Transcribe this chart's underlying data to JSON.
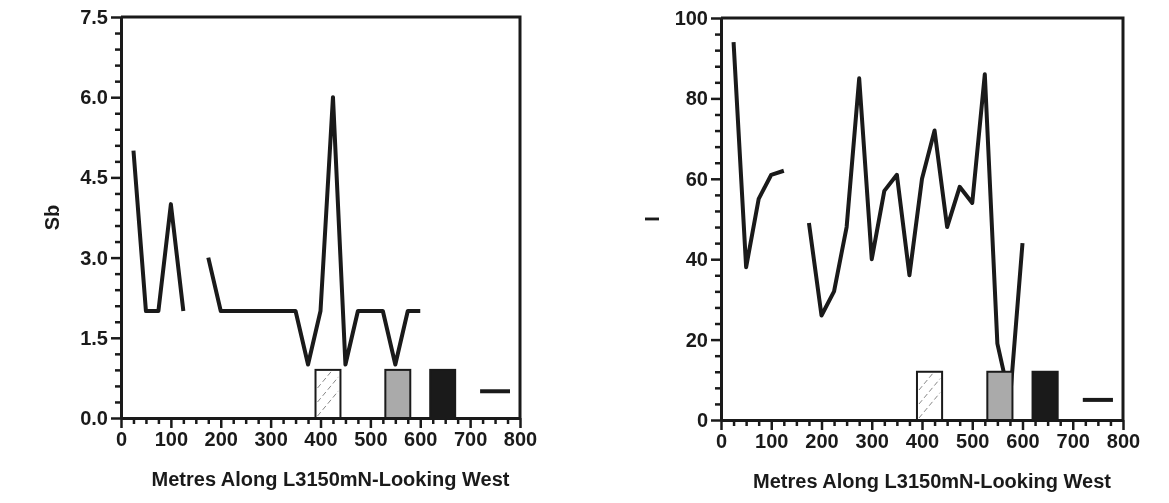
{
  "chart_data": [
    {
      "type": "line",
      "xlabel": "Metres Along L3150mN-Looking West",
      "ylabel": "Sb",
      "grid": false,
      "marker": "none",
      "line_style": "solid",
      "xlim": [
        0,
        800
      ],
      "ylim": [
        0,
        7.5
      ],
      "xticks": [
        0,
        {
          "value": 25,
          "label": null
        },
        {
          "value": 50,
          "label": null
        },
        {
          "value": 75,
          "label": null
        },
        100,
        {
          "value": 125,
          "label": null
        },
        {
          "value": 150,
          "label": null
        },
        {
          "value": 175,
          "label": null
        },
        200,
        {
          "value": 225,
          "label": null
        },
        {
          "value": 250,
          "label": null
        },
        {
          "value": 275,
          "label": null
        },
        300,
        {
          "value": 325,
          "label": null
        },
        {
          "value": 350,
          "label": null
        },
        {
          "value": 375,
          "label": null
        },
        400,
        {
          "value": 425,
          "label": null
        },
        {
          "value": 450,
          "label": null
        },
        {
          "value": 475,
          "label": null
        },
        500,
        {
          "value": 525,
          "label": null
        },
        {
          "value": 550,
          "label": null
        },
        {
          "value": 575,
          "label": null
        },
        600,
        {
          "value": 625,
          "label": null
        },
        {
          "value": 650,
          "label": null
        },
        {
          "value": 675,
          "label": null
        },
        700,
        {
          "value": 725,
          "label": null
        },
        {
          "value": 750,
          "label": null
        },
        {
          "value": 775,
          "label": null
        },
        800
      ],
      "yticks": [
        {
          "value": 0,
          "label": "0.0"
        },
        {
          "value": 0.3,
          "label": null
        },
        {
          "value": 0.6,
          "label": null
        },
        {
          "value": 0.9,
          "label": null
        },
        {
          "value": 1.2,
          "label": null
        },
        {
          "value": 1.5,
          "label": "1.5"
        },
        {
          "value": 1.8,
          "label": null
        },
        {
          "value": 2.1,
          "label": null
        },
        {
          "value": 2.4,
          "label": null
        },
        {
          "value": 2.7,
          "label": null
        },
        {
          "value": 3,
          "label": "3.0"
        },
        {
          "value": 3.3,
          "label": null
        },
        {
          "value": 3.6,
          "label": null
        },
        {
          "value": 3.9,
          "label": null
        },
        {
          "value": 4.2,
          "label": null
        },
        {
          "value": 4.5,
          "label": "4.5"
        },
        {
          "value": 4.8,
          "label": null
        },
        {
          "value": 5.1,
          "label": null
        },
        {
          "value": 5.4,
          "label": null
        },
        {
          "value": 5.7,
          "label": null
        },
        {
          "value": 6,
          "label": "6.0"
        },
        {
          "value": 6.3,
          "label": null
        },
        {
          "value": 6.6,
          "label": null
        },
        {
          "value": 6.9,
          "label": null
        },
        {
          "value": 7.2,
          "label": null
        },
        {
          "value": 7.5,
          "label": "7.5"
        }
      ],
      "series": [
        {
          "color": "#1a1a1a",
          "x": [
            25,
            50,
            75,
            100,
            125,
            150,
            175,
            200,
            225,
            250,
            275,
            300,
            325,
            350,
            375,
            400,
            425,
            450,
            475,
            500,
            525,
            550,
            575,
            600
          ],
          "values": [
            5,
            2,
            2,
            4,
            2,
            null,
            3,
            2,
            2,
            2,
            2,
            2,
            2,
            2,
            1,
            2,
            6,
            1,
            2,
            2,
            2,
            1,
            2,
            2
          ]
        },
        {
          "color": "#1a1a1a",
          "x": [
            720,
            780
          ],
          "values": [
            0.5,
            0.5
          ]
        },
        {
          "type": "bar",
          "x": [
            415,
            555,
            645
          ],
          "values": [
            0.9,
            0.9,
            0.9
          ],
          "colors": [
            "#ffffff",
            "#aaaaaa",
            "#1a1a1a"
          ]
        }
      ]
    },
    {
      "type": "line",
      "xlabel": "Metres Along L3150mN-Looking West",
      "ylabel": "I",
      "grid": false,
      "marker": "none",
      "line_style": "solid",
      "xlim": [
        0,
        800
      ],
      "ylim": [
        0,
        100
      ],
      "xticks": [
        0,
        {
          "value": 25,
          "label": null
        },
        {
          "value": 50,
          "label": null
        },
        {
          "value": 75,
          "label": null
        },
        100,
        {
          "value": 125,
          "label": null
        },
        {
          "value": 150,
          "label": null
        },
        {
          "value": 175,
          "label": null
        },
        200,
        {
          "value": 225,
          "label": null
        },
        {
          "value": 250,
          "label": null
        },
        {
          "value": 275,
          "label": null
        },
        300,
        {
          "value": 325,
          "label": null
        },
        {
          "value": 350,
          "label": null
        },
        {
          "value": 375,
          "label": null
        },
        400,
        {
          "value": 425,
          "label": null
        },
        {
          "value": 450,
          "label": null
        },
        {
          "value": 475,
          "label": null
        },
        500,
        {
          "value": 525,
          "label": null
        },
        {
          "value": 550,
          "label": null
        },
        {
          "value": 575,
          "label": null
        },
        600,
        {
          "value": 625,
          "label": null
        },
        {
          "value": 650,
          "label": null
        },
        {
          "value": 675,
          "label": null
        },
        700,
        {
          "value": 725,
          "label": null
        },
        {
          "value": 750,
          "label": null
        },
        {
          "value": 775,
          "label": null
        },
        800
      ],
      "yticks": [
        0,
        {
          "value": 4,
          "label": null
        },
        {
          "value": 8,
          "label": null
        },
        {
          "value": 12,
          "label": null
        },
        {
          "value": 16,
          "label": null
        },
        20,
        {
          "value": 24,
          "label": null
        },
        {
          "value": 28,
          "label": null
        },
        {
          "value": 32,
          "label": null
        },
        {
          "value": 36,
          "label": null
        },
        40,
        {
          "value": 44,
          "label": null
        },
        {
          "value": 48,
          "label": null
        },
        {
          "value": 52,
          "label": null
        },
        {
          "value": 56,
          "label": null
        },
        60,
        {
          "value": 64,
          "label": null
        },
        {
          "value": 68,
          "label": null
        },
        {
          "value": 72,
          "label": null
        },
        {
          "value": 76,
          "label": null
        },
        80,
        {
          "value": 84,
          "label": null
        },
        {
          "value": 88,
          "label": null
        },
        {
          "value": 92,
          "label": null
        },
        {
          "value": 96,
          "label": null
        },
        100
      ],
      "series": [
        {
          "color": "#1a1a1a",
          "x": [
            25,
            50,
            75,
            100,
            125,
            150,
            175,
            200,
            225,
            250,
            275,
            300,
            325,
            350,
            375,
            400,
            425,
            450,
            475,
            500,
            525,
            550,
            575,
            600
          ],
          "values": [
            94,
            38,
            55,
            61,
            62,
            null,
            49,
            26,
            32,
            48,
            85,
            40,
            57,
            61,
            36,
            60,
            72,
            48,
            58,
            54,
            86,
            19,
            5,
            44
          ]
        },
        {
          "color": "#1a1a1a",
          "x": [
            720,
            780
          ],
          "values": [
            5,
            5
          ]
        },
        {
          "type": "bar",
          "x": [
            415,
            555,
            645
          ],
          "values": [
            12,
            12,
            12
          ],
          "colors": [
            "#ffffff",
            "#aaaaaa",
            "#1a1a1a"
          ]
        }
      ]
    }
  ]
}
